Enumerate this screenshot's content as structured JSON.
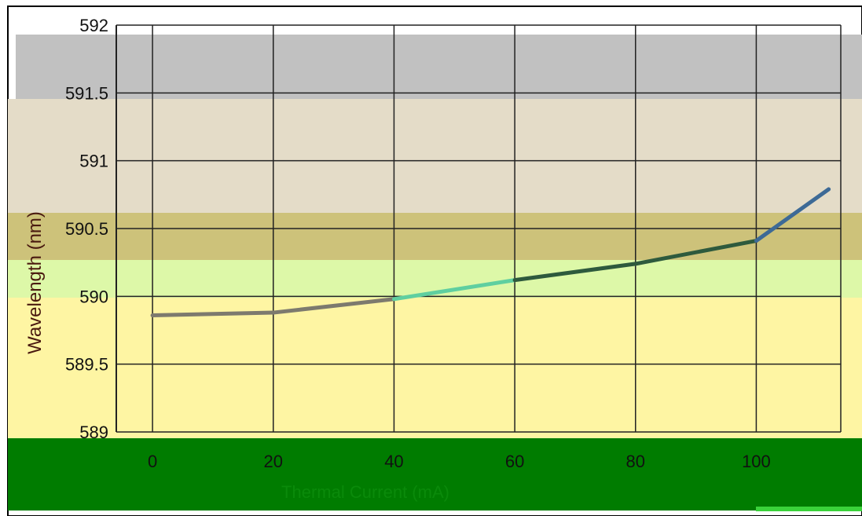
{
  "chart_data": {
    "type": "line",
    "title": "",
    "xlabel": "Thermal Current (mA)",
    "ylabel": "Wavelength (nm)",
    "x": [
      0,
      20,
      40,
      60,
      80,
      100,
      112
    ],
    "series": [
      {
        "values": [
          589.86,
          589.88,
          589.98,
          590.12,
          590.24,
          590.41,
          590.79
        ]
      }
    ],
    "xlim": [
      -6,
      114
    ],
    "ylim": [
      589,
      592
    ],
    "yticks": [
      "589",
      "589.5",
      "590",
      "590.5",
      "591",
      "591.5",
      "592"
    ],
    "xticks": [
      "0",
      "20",
      "40",
      "60",
      "80",
      "100"
    ],
    "grid": true
  },
  "colors": {
    "gray_band": "#c1c1c1",
    "beige_band": "#e4dcc8",
    "olive_band": "#cdc27a",
    "lightgreen_band": "#ddf8a8",
    "yellow_band": "#fef5a3",
    "green_band": "#007c00"
  }
}
